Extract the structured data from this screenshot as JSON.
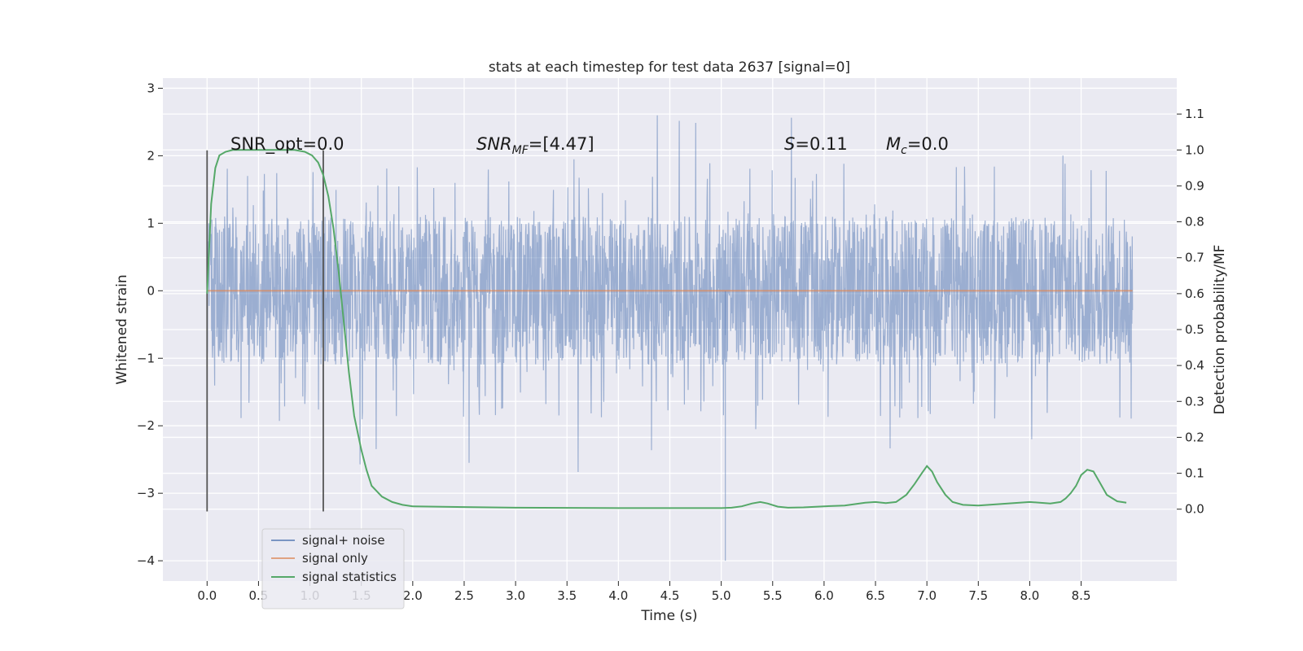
{
  "chart_data": {
    "type": "line",
    "title": "stats at each timestep for test data 2637 [signal=0]",
    "xlabel": "Time (s)",
    "ylabel": "Whitened strain",
    "ylabel_right": "Detection probability/MF",
    "xlim": [
      -0.43,
      9.43
    ],
    "ylim": [
      -4.3,
      3.15
    ],
    "ylim_right": [
      -0.2,
      1.2
    ],
    "x_ticks": [
      "0.0",
      "0.5",
      "1.0",
      "1.5",
      "2.0",
      "2.5",
      "3.0",
      "3.5",
      "4.0",
      "4.5",
      "5.0",
      "5.5",
      "6.0",
      "6.5",
      "7.0",
      "7.5",
      "8.0",
      "8.5"
    ],
    "y_ticks": [
      "3",
      "2",
      "1",
      "0",
      "−1",
      "−2",
      "−3",
      "−4"
    ],
    "y_right_ticks": [
      "1.1",
      "1.0",
      "0.9",
      "0.8",
      "0.7",
      "0.6",
      "0.5",
      "0.4",
      "0.3",
      "0.2",
      "0.1",
      "0.0"
    ],
    "grid": true,
    "legend_position": "lower-left",
    "colors": {
      "noise": "#4c72b0",
      "signal": "#dd8452",
      "stats": "#55a868",
      "markers": "#555555",
      "background": "#eaeaf2"
    },
    "annotations": {
      "snr_opt": "SNR_opt=0.0",
      "snr_mf_main": "SNR",
      "snr_mf_sub": "MF",
      "snr_mf_value": "=[4.47]",
      "s_main": "S",
      "s_value": "=0.11",
      "mc_main": "M",
      "mc_sub": "c",
      "mc_value": "=0.0"
    },
    "series": [
      {
        "name": "signal+ noise",
        "axis": "left",
        "description_stats": {
          "x_start": 0.0,
          "x_end": 9.0,
          "core_band": [
            -1.0,
            1.0
          ],
          "peak_max": 2.8,
          "peak_min": -4.0
        }
      },
      {
        "name": "signal only",
        "axis": "left",
        "x": [
          0.0,
          9.0
        ],
        "y": [
          0.0,
          0.0
        ]
      },
      {
        "name": "signal statistics",
        "axis": "right",
        "x": [
          0.0,
          0.04,
          0.08,
          0.12,
          0.18,
          0.25,
          0.35,
          0.5,
          0.7,
          0.85,
          0.95,
          1.02,
          1.08,
          1.13,
          1.18,
          1.23,
          1.28,
          1.33,
          1.38,
          1.43,
          1.5,
          1.55,
          1.6,
          1.7,
          1.8,
          1.9,
          2.0,
          2.5,
          3.0,
          4.0,
          4.5,
          5.0,
          5.1,
          5.2,
          5.3,
          5.38,
          5.45,
          5.55,
          5.65,
          5.8,
          6.0,
          6.2,
          6.4,
          6.5,
          6.6,
          6.7,
          6.8,
          6.88,
          6.95,
          7.0,
          7.05,
          7.1,
          7.18,
          7.25,
          7.35,
          7.5,
          7.7,
          8.0,
          8.2,
          8.3,
          8.35,
          8.4,
          8.45,
          8.5,
          8.56,
          8.62,
          8.68,
          8.75,
          8.85,
          8.94
        ],
        "y": [
          0.6,
          0.85,
          0.95,
          0.985,
          0.995,
          1.0,
          1.0,
          1.0,
          1.0,
          1.0,
          0.995,
          0.985,
          0.965,
          0.93,
          0.87,
          0.78,
          0.66,
          0.52,
          0.38,
          0.26,
          0.165,
          0.11,
          0.065,
          0.035,
          0.02,
          0.012,
          0.008,
          0.006,
          0.004,
          0.003,
          0.003,
          0.003,
          0.004,
          0.008,
          0.016,
          0.02,
          0.016,
          0.007,
          0.004,
          0.005,
          0.008,
          0.01,
          0.018,
          0.02,
          0.017,
          0.02,
          0.04,
          0.07,
          0.1,
          0.12,
          0.105,
          0.075,
          0.04,
          0.02,
          0.012,
          0.01,
          0.014,
          0.02,
          0.016,
          0.02,
          0.03,
          0.045,
          0.065,
          0.095,
          0.11,
          0.105,
          0.075,
          0.04,
          0.022,
          0.018
        ]
      }
    ],
    "vertical_markers": {
      "x": [
        0.0,
        1.13
      ],
      "y_range": [
        -3.27,
        2.08
      ]
    }
  }
}
